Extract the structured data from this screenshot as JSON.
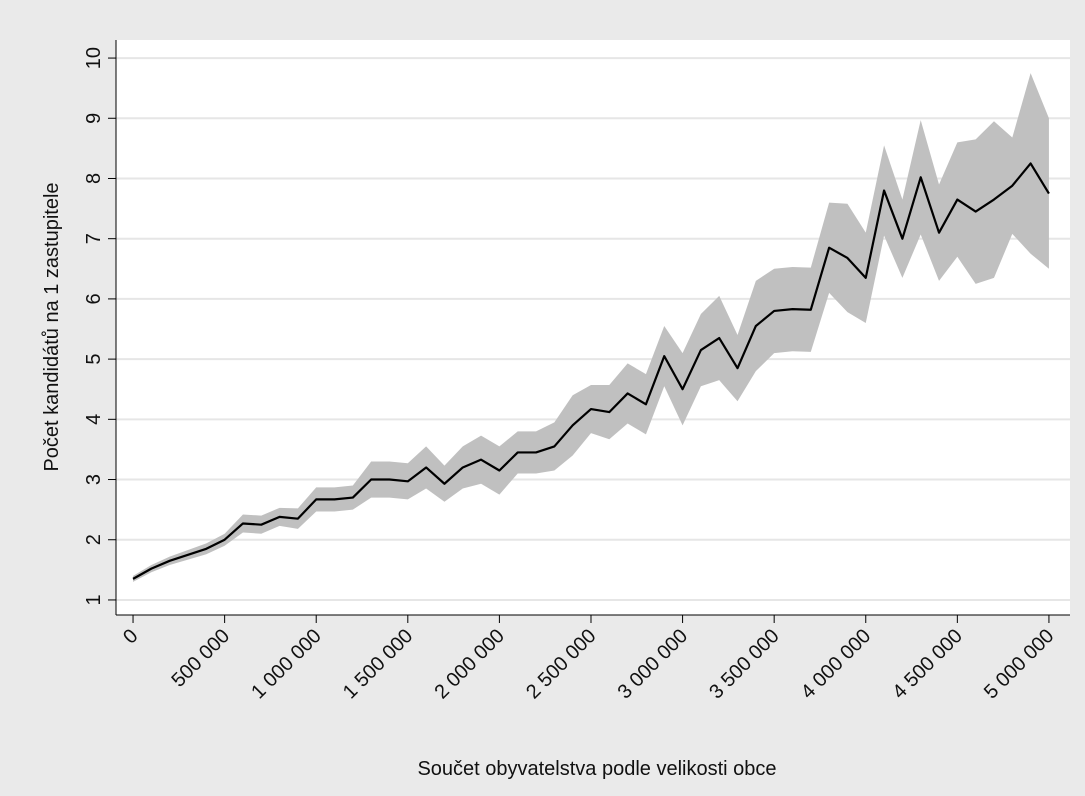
{
  "chart_data": {
    "type": "line",
    "x_label": "Součet obyvatelstva podle velikosti obce",
    "y_label": "Počet kandidátů na 1 zastupitele",
    "x": [
      0,
      100000,
      200000,
      300000,
      400000,
      500000,
      600000,
      700000,
      800000,
      900000,
      1000000,
      1100000,
      1200000,
      1300000,
      1400000,
      1500000,
      1600000,
      1700000,
      1800000,
      1900000,
      2000000,
      2100000,
      2200000,
      2300000,
      2400000,
      2500000,
      2600000,
      2700000,
      2800000,
      2900000,
      3000000,
      3100000,
      3200000,
      3300000,
      3400000,
      3500000,
      3600000,
      3700000,
      3800000,
      3900000,
      4000000,
      4100000,
      4200000,
      4300000,
      4400000,
      4500000,
      4600000,
      4700000,
      4800000,
      4900000,
      5000000
    ],
    "values": [
      1.35,
      1.52,
      1.65,
      1.75,
      1.85,
      2.0,
      2.27,
      2.25,
      2.38,
      2.35,
      2.67,
      2.67,
      2.7,
      3.0,
      3.0,
      2.97,
      3.2,
      2.93,
      3.2,
      3.33,
      3.15,
      3.45,
      3.45,
      3.55,
      3.9,
      4.17,
      4.12,
      4.43,
      4.25,
      5.05,
      4.5,
      5.15,
      5.35,
      4.85,
      5.55,
      5.8,
      5.83,
      5.82,
      6.85,
      6.68,
      6.35,
      7.8,
      7.0,
      8.02,
      7.1,
      7.65,
      7.45,
      7.65,
      7.88,
      8.25,
      7.75
    ],
    "lower": [
      1.3,
      1.46,
      1.58,
      1.67,
      1.76,
      1.9,
      2.12,
      2.1,
      2.23,
      2.18,
      2.47,
      2.47,
      2.5,
      2.7,
      2.7,
      2.67,
      2.85,
      2.63,
      2.85,
      2.93,
      2.75,
      3.1,
      3.1,
      3.15,
      3.4,
      3.77,
      3.67,
      3.93,
      3.75,
      4.55,
      3.9,
      4.55,
      4.65,
      4.3,
      4.8,
      5.1,
      5.13,
      5.12,
      6.1,
      5.78,
      5.6,
      7.05,
      6.35,
      7.07,
      6.3,
      6.7,
      6.25,
      6.35,
      7.08,
      6.75,
      6.5
    ],
    "upper": [
      1.4,
      1.58,
      1.72,
      1.83,
      1.94,
      2.1,
      2.42,
      2.4,
      2.53,
      2.52,
      2.87,
      2.87,
      2.9,
      3.3,
      3.3,
      3.27,
      3.55,
      3.23,
      3.55,
      3.73,
      3.55,
      3.8,
      3.8,
      3.95,
      4.4,
      4.57,
      4.57,
      4.93,
      4.75,
      5.55,
      5.1,
      5.75,
      6.05,
      5.4,
      6.3,
      6.5,
      6.53,
      6.52,
      7.6,
      7.58,
      7.1,
      8.55,
      7.65,
      8.97,
      7.9,
      8.6,
      8.65,
      8.95,
      8.68,
      9.75,
      9.0
    ],
    "color": "#000000",
    "band_color": "#c0c0c0",
    "grid": true,
    "xlim": [
      -93000,
      5115000
    ],
    "ylim": [
      0.75,
      10.3
    ],
    "xticks": [
      0,
      {
        "value": 500000,
        "label": "500 000"
      },
      {
        "value": 1000000,
        "label": "1 000 000"
      },
      {
        "value": 1500000,
        "label": "1 500 000"
      },
      {
        "value": 2000000,
        "label": "2 000 000"
      },
      {
        "value": 2500000,
        "label": "2 500 000"
      },
      {
        "value": 3000000,
        "label": "3 000 000"
      },
      {
        "value": 3500000,
        "label": "3 500 000"
      },
      {
        "value": 4000000,
        "label": "4 000 000"
      },
      {
        "value": 4500000,
        "label": "4 500 000"
      },
      {
        "value": 5000000,
        "label": "5 000 000"
      }
    ],
    "yticks": [
      1,
      2,
      3,
      4,
      5,
      6,
      7,
      8,
      9,
      10
    ]
  }
}
